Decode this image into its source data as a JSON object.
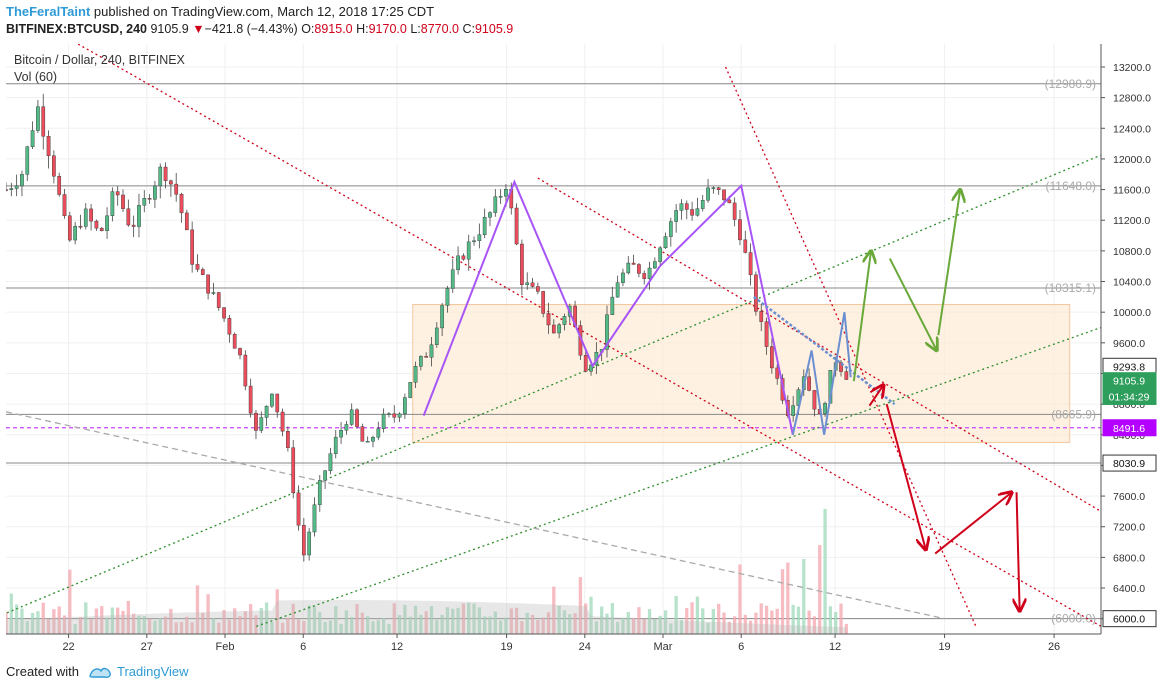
{
  "header": {
    "author": "TheFeralTaint",
    "published_text": "published on TradingView.com, March 12, 2018 17:25 CDT",
    "symbol": "BITFINEX:BTCUSD, 240",
    "last_price": "9105.9",
    "change": "−421.8 (−4.43%)",
    "o_label": "O:",
    "o_value": "8915.0",
    "h_label": "H:",
    "h_value": "9170.0",
    "l_label": "L:",
    "l_value": "8770.0",
    "c_label": "C:",
    "c_value": "9105.9"
  },
  "footer": {
    "created_with": "Created with",
    "brand": "TradingView"
  },
  "colors": {
    "up_candle": "#53b987",
    "down_candle": "#eb4d5c",
    "red_trend": "#d0021b",
    "green_trend": "#2f8f2f",
    "pattern": "#a855f7",
    "blue_line": "#6b8fd0",
    "support_purple": "#cc44ff",
    "zone_fill": "#fde7cf",
    "arrow_green": "#6aa83a",
    "arrow_red": "#d0021b"
  },
  "chart_data": {
    "type": "candlestick",
    "title": "Bitcoin / Dollar, 240, BITFINEX",
    "indicator": "Vol (60)",
    "ylim": [
      5800,
      13500
    ],
    "y_ticks": [
      6000,
      6400,
      6800,
      7200,
      7600,
      8000,
      8400,
      8800,
      9200,
      9600,
      10000,
      10400,
      10800,
      11200,
      11600,
      12000,
      12400,
      12800,
      13200
    ],
    "y_tick_labels": [
      "6000.0",
      "6400.0",
      "6800.0",
      "7200.0",
      "7600.0",
      "8000.0",
      "8400.0",
      "8800.0",
      "9200.0",
      "9600.0",
      "10000.0",
      "10400.0",
      "10800.0",
      "11200.0",
      "11600.0",
      "12000.0",
      "12400.0",
      "12800.0",
      "13200.0"
    ],
    "x_day_range": [
      0,
      70
    ],
    "x_ticks": [
      {
        "day": 4,
        "label": "22"
      },
      {
        "day": 9,
        "label": "27"
      },
      {
        "day": 14,
        "label": "Feb"
      },
      {
        "day": 19,
        "label": "6"
      },
      {
        "day": 25,
        "label": "12"
      },
      {
        "day": 32,
        "label": "19"
      },
      {
        "day": 37,
        "label": "24"
      },
      {
        "day": 42,
        "label": "Mar"
      },
      {
        "day": 47,
        "label": "6"
      },
      {
        "day": 53,
        "label": "12"
      },
      {
        "day": 60,
        "label": "19"
      },
      {
        "day": 67,
        "label": "26"
      }
    ],
    "close_path": [
      [
        0,
        11600
      ],
      [
        1,
        11800
      ],
      [
        2,
        12700
      ],
      [
        3,
        11900
      ],
      [
        4,
        10900
      ],
      [
        5,
        11300
      ],
      [
        6,
        11000
      ],
      [
        7,
        11600
      ],
      [
        8,
        11100
      ],
      [
        9,
        11500
      ],
      [
        10,
        11900
      ],
      [
        11,
        11500
      ],
      [
        12,
        10600
      ],
      [
        13,
        10300
      ],
      [
        14,
        9900
      ],
      [
        15,
        9400
      ],
      [
        16,
        8400
      ],
      [
        17,
        9000
      ],
      [
        18,
        8200
      ],
      [
        19,
        6800
      ],
      [
        20,
        7700
      ],
      [
        21,
        8300
      ],
      [
        22,
        8700
      ],
      [
        23,
        8200
      ],
      [
        24,
        8600
      ],
      [
        25,
        8650
      ],
      [
        26,
        9200
      ],
      [
        27,
        9500
      ],
      [
        28,
        10200
      ],
      [
        29,
        10700
      ],
      [
        30,
        11000
      ],
      [
        31,
        11300
      ],
      [
        32,
        11700
      ],
      [
        33,
        10400
      ],
      [
        34,
        10200
      ],
      [
        35,
        9700
      ],
      [
        36,
        10100
      ],
      [
        37,
        9300
      ],
      [
        38,
        9500
      ],
      [
        39,
        10400
      ],
      [
        40,
        10600
      ],
      [
        41,
        10500
      ],
      [
        42,
        11000
      ],
      [
        43,
        11400
      ],
      [
        44,
        11300
      ],
      [
        45,
        11600
      ],
      [
        46,
        11500
      ],
      [
        47,
        11000
      ],
      [
        48,
        10000
      ],
      [
        49,
        9300
      ],
      [
        50,
        8700
      ],
      [
        51,
        9200
      ],
      [
        52,
        8600
      ],
      [
        53,
        9400
      ],
      [
        54,
        9105.9
      ]
    ],
    "horizontal_levels": [
      {
        "price": 12980.9,
        "label": "(12980.9)"
      },
      {
        "price": 11648.0,
        "label": "(11648.0)"
      },
      {
        "price": 10315.1,
        "label": "(10315.1)"
      },
      {
        "price": 8665.9,
        "label": "(8665.9)"
      },
      {
        "price": 8030.9,
        "label": "8030.9"
      },
      {
        "price": 6000.0,
        "label": "(6000.0)"
      }
    ],
    "price_tags": [
      {
        "price": 9293.8,
        "label": "9293.8",
        "style": "dark"
      },
      {
        "price": 9105.9,
        "label": "9105.9",
        "style": "green"
      },
      {
        "price": 8900,
        "label": "01:34:29",
        "style": "green"
      },
      {
        "price": 8491.6,
        "label": "8491.6",
        "style": "purple"
      },
      {
        "price": 8030.9,
        "label": "8030.9",
        "style": "dark"
      },
      {
        "price": 6000.0,
        "label": "6000.0",
        "style": "dark"
      }
    ],
    "zone": {
      "day_from": 26,
      "day_to": 68,
      "price_low": 8300,
      "price_high": 10100
    },
    "trendlines": [
      {
        "name": "red-1",
        "color": "red",
        "from": [
          -4,
          14500
        ],
        "to": [
          70,
          5900
        ]
      },
      {
        "name": "red-2",
        "color": "red",
        "from": [
          34,
          11750
        ],
        "to": [
          70,
          7400
        ]
      },
      {
        "name": "red-steep",
        "color": "red",
        "from": [
          46,
          13200
        ],
        "to": [
          62,
          5900
        ]
      },
      {
        "name": "green-1",
        "color": "green",
        "from": [
          -2,
          5900
        ],
        "to": [
          70,
          12050
        ]
      },
      {
        "name": "green-2",
        "color": "green",
        "from": [
          16,
          5900
        ],
        "to": [
          70,
          9800
        ]
      },
      {
        "name": "grey-1",
        "color": "grey",
        "from": [
          0,
          8700
        ],
        "to": [
          60,
          6000
        ]
      }
    ],
    "pattern_points": [
      [
        26.7,
        8650
      ],
      [
        32.5,
        11700
      ],
      [
        37.5,
        9300
      ],
      [
        41.8,
        10600
      ],
      [
        47,
        11650
      ],
      [
        50.3,
        8400
      ]
    ],
    "pattern2_points": [
      [
        50.3,
        8400
      ],
      [
        51.5,
        9500
      ],
      [
        52.3,
        8400
      ],
      [
        53.6,
        10000
      ],
      [
        54,
        9150
      ]
    ],
    "blue_trend": {
      "from": [
        47.8,
        10200
      ],
      "to": [
        56.8,
        8800
      ]
    },
    "green_arrows": [
      {
        "from": [
          54.2,
          9100
        ],
        "to": [
          55.3,
          10800
        ]
      },
      {
        "from": [
          56.5,
          10700
        ],
        "to": [
          59.5,
          9500
        ]
      },
      {
        "from": [
          59.6,
          9700
        ],
        "to": [
          61.0,
          11600
        ]
      }
    ],
    "red_arrows": [
      {
        "from": [
          55.2,
          8780
        ],
        "to": [
          56.1,
          9050
        ]
      },
      {
        "from": [
          56.3,
          8800
        ],
        "to": [
          58.8,
          6900
        ]
      },
      {
        "from": [
          59.4,
          6850
        ],
        "to": [
          64.3,
          7650
        ]
      },
      {
        "from": [
          64.6,
          7650
        ],
        "to": [
          64.8,
          6100
        ]
      }
    ]
  }
}
